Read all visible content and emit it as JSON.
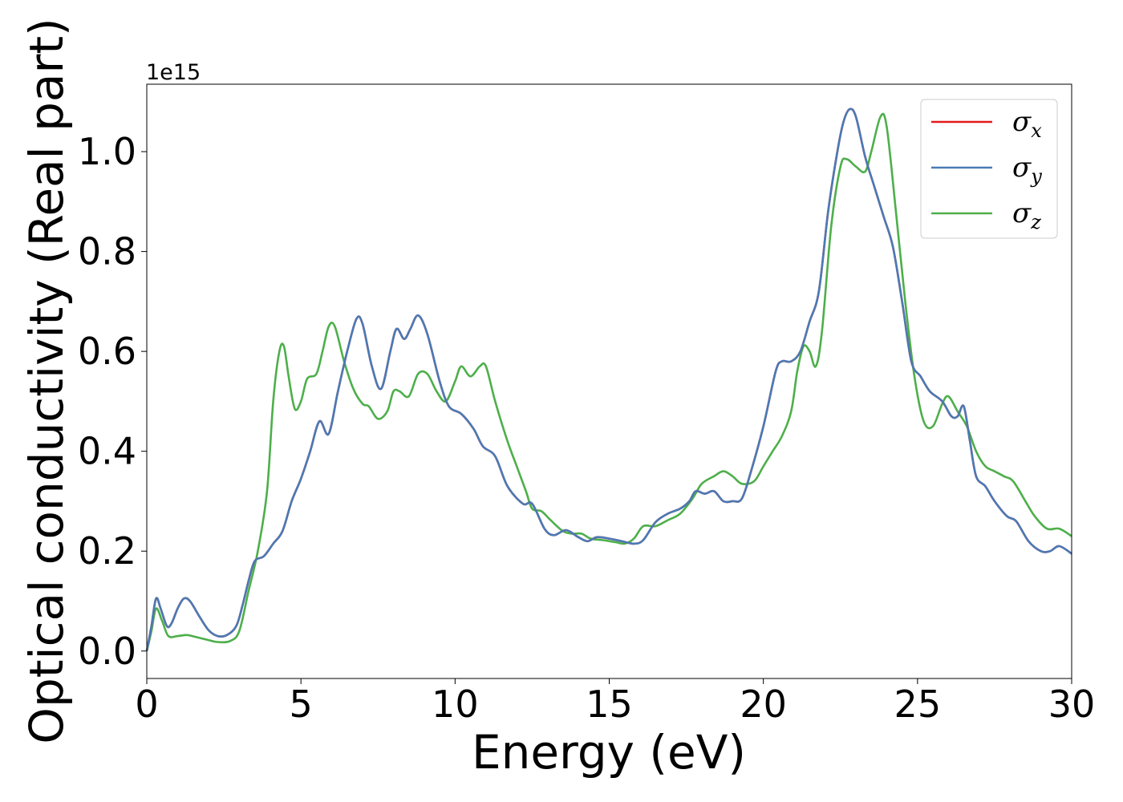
{
  "chart_data": {
    "type": "line",
    "xlabel": "Energy (eV)",
    "ylabel": "Optical conductivity (Real part)",
    "y_offset_text": "1e15",
    "xlim": [
      0,
      30
    ],
    "ylim": [
      -0.055,
      1.135
    ],
    "x_ticks": [
      "0",
      "5",
      "10",
      "15",
      "20",
      "25",
      "30"
    ],
    "x_tick_values": [
      0,
      5,
      10,
      15,
      20,
      25,
      30
    ],
    "y_ticks": [
      "0.0",
      "0.2",
      "0.4",
      "0.6",
      "0.8",
      "1.0"
    ],
    "y_tick_values": [
      0.0,
      0.2,
      0.4,
      0.6,
      0.8,
      1.0
    ],
    "grid": false,
    "legend_position": "top-right",
    "series": [
      {
        "name": "σx",
        "symbol": "σ",
        "subscript": "x",
        "color": "#e41a1c",
        "points": [
          [
            0,
            0.0
          ],
          [
            0.15,
            0.05
          ],
          [
            0.3,
            0.105
          ],
          [
            0.45,
            0.085
          ],
          [
            0.65,
            0.05
          ],
          [
            0.8,
            0.055
          ],
          [
            1.0,
            0.085
          ],
          [
            1.2,
            0.105
          ],
          [
            1.4,
            0.1
          ],
          [
            1.7,
            0.07
          ],
          [
            2.0,
            0.042
          ],
          [
            2.3,
            0.03
          ],
          [
            2.6,
            0.032
          ],
          [
            2.9,
            0.05
          ],
          [
            3.1,
            0.09
          ],
          [
            3.3,
            0.14
          ],
          [
            3.5,
            0.18
          ],
          [
            3.8,
            0.19
          ],
          [
            4.1,
            0.215
          ],
          [
            4.4,
            0.24
          ],
          [
            4.7,
            0.3
          ],
          [
            5.0,
            0.345
          ],
          [
            5.3,
            0.4
          ],
          [
            5.6,
            0.46
          ],
          [
            5.9,
            0.435
          ],
          [
            6.2,
            0.52
          ],
          [
            6.5,
            0.6
          ],
          [
            6.8,
            0.665
          ],
          [
            7.0,
            0.655
          ],
          [
            7.3,
            0.57
          ],
          [
            7.6,
            0.525
          ],
          [
            7.9,
            0.6
          ],
          [
            8.1,
            0.645
          ],
          [
            8.35,
            0.625
          ],
          [
            8.55,
            0.645
          ],
          [
            8.8,
            0.672
          ],
          [
            9.1,
            0.635
          ],
          [
            9.5,
            0.54
          ],
          [
            9.8,
            0.49
          ],
          [
            10.2,
            0.475
          ],
          [
            10.6,
            0.445
          ],
          [
            10.9,
            0.41
          ],
          [
            11.3,
            0.39
          ],
          [
            11.7,
            0.33
          ],
          [
            12.2,
            0.295
          ],
          [
            12.5,
            0.295
          ],
          [
            12.9,
            0.245
          ],
          [
            13.2,
            0.232
          ],
          [
            13.6,
            0.242
          ],
          [
            14.0,
            0.228
          ],
          [
            14.3,
            0.22
          ],
          [
            14.6,
            0.228
          ],
          [
            15.0,
            0.225
          ],
          [
            15.4,
            0.22
          ],
          [
            15.8,
            0.215
          ],
          [
            16.1,
            0.222
          ],
          [
            16.5,
            0.258
          ],
          [
            16.9,
            0.275
          ],
          [
            17.3,
            0.285
          ],
          [
            17.6,
            0.3
          ],
          [
            17.8,
            0.32
          ],
          [
            18.1,
            0.315
          ],
          [
            18.4,
            0.32
          ],
          [
            18.7,
            0.3
          ],
          [
            19.0,
            0.3
          ],
          [
            19.3,
            0.305
          ],
          [
            19.6,
            0.36
          ],
          [
            20.0,
            0.45
          ],
          [
            20.4,
            0.56
          ],
          [
            20.6,
            0.58
          ],
          [
            20.9,
            0.58
          ],
          [
            21.2,
            0.6
          ],
          [
            21.5,
            0.66
          ],
          [
            21.8,
            0.72
          ],
          [
            22.1,
            0.88
          ],
          [
            22.4,
            1.0
          ],
          [
            22.6,
            1.06
          ],
          [
            22.8,
            1.085
          ],
          [
            23.0,
            1.07
          ],
          [
            23.3,
            0.99
          ],
          [
            23.6,
            0.93
          ],
          [
            23.9,
            0.87
          ],
          [
            24.2,
            0.81
          ],
          [
            24.5,
            0.7
          ],
          [
            24.8,
            0.58
          ],
          [
            25.1,
            0.55
          ],
          [
            25.4,
            0.52
          ],
          [
            25.8,
            0.5
          ],
          [
            26.1,
            0.47
          ],
          [
            26.3,
            0.47
          ],
          [
            26.5,
            0.49
          ],
          [
            26.7,
            0.42
          ],
          [
            26.9,
            0.35
          ],
          [
            27.2,
            0.33
          ],
          [
            27.5,
            0.3
          ],
          [
            27.9,
            0.27
          ],
          [
            28.2,
            0.26
          ],
          [
            28.6,
            0.22
          ],
          [
            29.0,
            0.2
          ],
          [
            29.3,
            0.2
          ],
          [
            29.6,
            0.21
          ],
          [
            30.0,
            0.195
          ]
        ]
      },
      {
        "name": "σy",
        "symbol": "σ",
        "subscript": "y",
        "color": "#4a7ab5",
        "points": [
          [
            0,
            0.0
          ],
          [
            0.15,
            0.05
          ],
          [
            0.3,
            0.105
          ],
          [
            0.45,
            0.085
          ],
          [
            0.65,
            0.05
          ],
          [
            0.8,
            0.055
          ],
          [
            1.0,
            0.085
          ],
          [
            1.2,
            0.105
          ],
          [
            1.4,
            0.1
          ],
          [
            1.7,
            0.07
          ],
          [
            2.0,
            0.042
          ],
          [
            2.3,
            0.03
          ],
          [
            2.6,
            0.032
          ],
          [
            2.9,
            0.05
          ],
          [
            3.1,
            0.09
          ],
          [
            3.3,
            0.14
          ],
          [
            3.5,
            0.18
          ],
          [
            3.8,
            0.19
          ],
          [
            4.1,
            0.215
          ],
          [
            4.4,
            0.24
          ],
          [
            4.7,
            0.3
          ],
          [
            5.0,
            0.345
          ],
          [
            5.3,
            0.4
          ],
          [
            5.6,
            0.46
          ],
          [
            5.9,
            0.435
          ],
          [
            6.2,
            0.52
          ],
          [
            6.5,
            0.6
          ],
          [
            6.8,
            0.665
          ],
          [
            7.0,
            0.655
          ],
          [
            7.3,
            0.57
          ],
          [
            7.6,
            0.525
          ],
          [
            7.9,
            0.6
          ],
          [
            8.1,
            0.645
          ],
          [
            8.35,
            0.625
          ],
          [
            8.55,
            0.645
          ],
          [
            8.8,
            0.672
          ],
          [
            9.1,
            0.635
          ],
          [
            9.5,
            0.54
          ],
          [
            9.8,
            0.49
          ],
          [
            10.2,
            0.475
          ],
          [
            10.6,
            0.445
          ],
          [
            10.9,
            0.41
          ],
          [
            11.3,
            0.39
          ],
          [
            11.7,
            0.33
          ],
          [
            12.2,
            0.295
          ],
          [
            12.5,
            0.295
          ],
          [
            12.9,
            0.245
          ],
          [
            13.2,
            0.232
          ],
          [
            13.6,
            0.242
          ],
          [
            14.0,
            0.228
          ],
          [
            14.3,
            0.22
          ],
          [
            14.6,
            0.228
          ],
          [
            15.0,
            0.225
          ],
          [
            15.4,
            0.22
          ],
          [
            15.8,
            0.215
          ],
          [
            16.1,
            0.222
          ],
          [
            16.5,
            0.258
          ],
          [
            16.9,
            0.275
          ],
          [
            17.3,
            0.285
          ],
          [
            17.6,
            0.3
          ],
          [
            17.8,
            0.32
          ],
          [
            18.1,
            0.315
          ],
          [
            18.4,
            0.32
          ],
          [
            18.7,
            0.3
          ],
          [
            19.0,
            0.3
          ],
          [
            19.3,
            0.305
          ],
          [
            19.6,
            0.36
          ],
          [
            20.0,
            0.45
          ],
          [
            20.4,
            0.56
          ],
          [
            20.6,
            0.58
          ],
          [
            20.9,
            0.58
          ],
          [
            21.2,
            0.6
          ],
          [
            21.5,
            0.66
          ],
          [
            21.8,
            0.72
          ],
          [
            22.1,
            0.88
          ],
          [
            22.4,
            1.0
          ],
          [
            22.6,
            1.06
          ],
          [
            22.8,
            1.085
          ],
          [
            23.0,
            1.07
          ],
          [
            23.3,
            0.99
          ],
          [
            23.6,
            0.93
          ],
          [
            23.9,
            0.87
          ],
          [
            24.2,
            0.81
          ],
          [
            24.5,
            0.7
          ],
          [
            24.8,
            0.58
          ],
          [
            25.1,
            0.55
          ],
          [
            25.4,
            0.52
          ],
          [
            25.8,
            0.5
          ],
          [
            26.1,
            0.47
          ],
          [
            26.3,
            0.47
          ],
          [
            26.5,
            0.49
          ],
          [
            26.7,
            0.42
          ],
          [
            26.9,
            0.35
          ],
          [
            27.2,
            0.33
          ],
          [
            27.5,
            0.3
          ],
          [
            27.9,
            0.27
          ],
          [
            28.2,
            0.26
          ],
          [
            28.6,
            0.22
          ],
          [
            29.0,
            0.2
          ],
          [
            29.3,
            0.2
          ],
          [
            29.6,
            0.21
          ],
          [
            30.0,
            0.195
          ]
        ]
      },
      {
        "name": "σz",
        "symbol": "σ",
        "subscript": "z",
        "color": "#4daf4a",
        "points": [
          [
            0,
            0.0
          ],
          [
            0.15,
            0.04
          ],
          [
            0.3,
            0.085
          ],
          [
            0.5,
            0.06
          ],
          [
            0.7,
            0.03
          ],
          [
            1.0,
            0.03
          ],
          [
            1.3,
            0.032
          ],
          [
            1.6,
            0.028
          ],
          [
            2.0,
            0.022
          ],
          [
            2.3,
            0.018
          ],
          [
            2.7,
            0.02
          ],
          [
            3.0,
            0.04
          ],
          [
            3.3,
            0.12
          ],
          [
            3.6,
            0.2
          ],
          [
            3.9,
            0.32
          ],
          [
            4.1,
            0.5
          ],
          [
            4.3,
            0.6
          ],
          [
            4.45,
            0.61
          ],
          [
            4.6,
            0.55
          ],
          [
            4.8,
            0.485
          ],
          [
            5.0,
            0.5
          ],
          [
            5.2,
            0.545
          ],
          [
            5.5,
            0.555
          ],
          [
            5.7,
            0.6
          ],
          [
            5.9,
            0.65
          ],
          [
            6.1,
            0.65
          ],
          [
            6.4,
            0.58
          ],
          [
            6.7,
            0.525
          ],
          [
            7.0,
            0.495
          ],
          [
            7.2,
            0.49
          ],
          [
            7.5,
            0.465
          ],
          [
            7.8,
            0.48
          ],
          [
            8.0,
            0.52
          ],
          [
            8.2,
            0.52
          ],
          [
            8.5,
            0.51
          ],
          [
            8.8,
            0.555
          ],
          [
            9.1,
            0.555
          ],
          [
            9.4,
            0.52
          ],
          [
            9.7,
            0.5
          ],
          [
            10.0,
            0.54
          ],
          [
            10.2,
            0.57
          ],
          [
            10.5,
            0.55
          ],
          [
            10.8,
            0.57
          ],
          [
            11.0,
            0.57
          ],
          [
            11.3,
            0.5
          ],
          [
            11.7,
            0.42
          ],
          [
            12.0,
            0.37
          ],
          [
            12.3,
            0.32
          ],
          [
            12.5,
            0.285
          ],
          [
            12.8,
            0.28
          ],
          [
            13.1,
            0.262
          ],
          [
            13.5,
            0.24
          ],
          [
            13.8,
            0.235
          ],
          [
            14.1,
            0.235
          ],
          [
            14.4,
            0.225
          ],
          [
            14.8,
            0.222
          ],
          [
            15.2,
            0.218
          ],
          [
            15.5,
            0.215
          ],
          [
            15.8,
            0.225
          ],
          [
            16.1,
            0.25
          ],
          [
            16.5,
            0.25
          ],
          [
            16.9,
            0.262
          ],
          [
            17.3,
            0.275
          ],
          [
            17.7,
            0.305
          ],
          [
            18.0,
            0.335
          ],
          [
            18.4,
            0.35
          ],
          [
            18.7,
            0.36
          ],
          [
            19.0,
            0.35
          ],
          [
            19.3,
            0.335
          ],
          [
            19.7,
            0.34
          ],
          [
            20.0,
            0.37
          ],
          [
            20.3,
            0.4
          ],
          [
            20.6,
            0.43
          ],
          [
            20.9,
            0.48
          ],
          [
            21.1,
            0.56
          ],
          [
            21.3,
            0.61
          ],
          [
            21.5,
            0.6
          ],
          [
            21.7,
            0.57
          ],
          [
            21.9,
            0.64
          ],
          [
            22.2,
            0.85
          ],
          [
            22.5,
            0.97
          ],
          [
            22.7,
            0.985
          ],
          [
            23.0,
            0.97
          ],
          [
            23.3,
            0.96
          ],
          [
            23.5,
            1.0
          ],
          [
            23.8,
            1.07
          ],
          [
            24.0,
            1.05
          ],
          [
            24.3,
            0.88
          ],
          [
            24.6,
            0.7
          ],
          [
            24.9,
            0.55
          ],
          [
            25.2,
            0.46
          ],
          [
            25.5,
            0.45
          ],
          [
            25.8,
            0.495
          ],
          [
            26.0,
            0.51
          ],
          [
            26.3,
            0.48
          ],
          [
            26.6,
            0.45
          ],
          [
            26.9,
            0.4
          ],
          [
            27.2,
            0.37
          ],
          [
            27.5,
            0.36
          ],
          [
            27.8,
            0.35
          ],
          [
            28.1,
            0.34
          ],
          [
            28.5,
            0.3
          ],
          [
            28.8,
            0.27
          ],
          [
            29.2,
            0.245
          ],
          [
            29.6,
            0.245
          ],
          [
            30.0,
            0.23
          ]
        ]
      }
    ]
  }
}
